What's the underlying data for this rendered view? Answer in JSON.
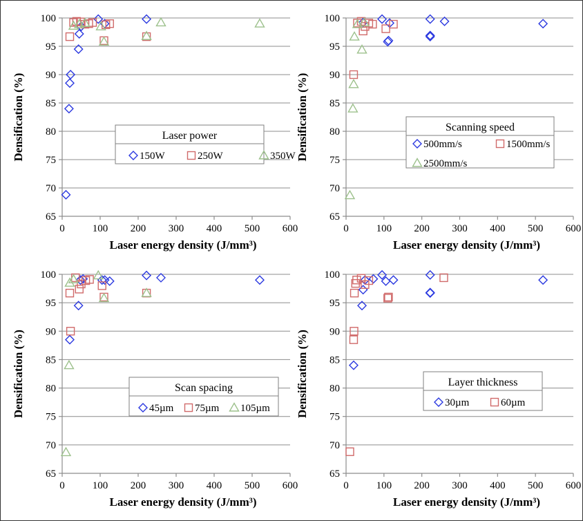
{
  "colors": {
    "blue": "#2b39e0",
    "red": "#d06a6a",
    "green": "#9cc08b"
  },
  "chart_data": [
    {
      "type": "scatter",
      "xlabel": "Laser energy density (J/mm³)",
      "ylabel": "Densification (%)",
      "xlim": [
        0,
        600
      ],
      "ylim": [
        65,
        100
      ],
      "xticks": [
        0,
        100,
        200,
        300,
        400,
        500,
        600
      ],
      "yticks": [
        65,
        70,
        75,
        80,
        85,
        90,
        95,
        100
      ],
      "grid": true,
      "legend_position": "center",
      "legend_title": "Laser power",
      "series": [
        {
          "name": "150W",
          "marker": "diamond",
          "color": "#2b39e0",
          "points": [
            [
              10,
              68.8
            ],
            [
              18,
              84
            ],
            [
              20,
              88.5
            ],
            [
              22,
              90
            ],
            [
              43,
              94.5
            ],
            [
              45,
              97.2
            ],
            [
              50,
              98.5
            ],
            [
              95,
              99.8
            ],
            [
              112,
              99
            ],
            [
              222,
              99.8
            ]
          ]
        },
        {
          "name": "250W",
          "marker": "square",
          "color": "#d06a6a",
          "points": [
            [
              20,
              96.7
            ],
            [
              30,
              99.2
            ],
            [
              38,
              99.4
            ],
            [
              48,
              99.3
            ],
            [
              60,
              98.9
            ],
            [
              70,
              99
            ],
            [
              80,
              99.2
            ],
            [
              110,
              96
            ],
            [
              115,
              98.8
            ],
            [
              125,
              99
            ],
            [
              222,
              96.7
            ]
          ]
        },
        {
          "name": "350W",
          "marker": "triangle",
          "color": "#9cc08b",
          "points": [
            [
              30,
              98.6
            ],
            [
              45,
              98.9
            ],
            [
              60,
              99.1
            ],
            [
              102,
              98.5
            ],
            [
              110,
              95.8
            ],
            [
              222,
              96.8
            ],
            [
              260,
              99.2
            ],
            [
              520,
              99
            ]
          ]
        }
      ]
    },
    {
      "type": "scatter",
      "xlabel": "Laser energy density (J/mm³)",
      "ylabel": "Densification (%)",
      "xlim": [
        0,
        600
      ],
      "ylim": [
        65,
        100
      ],
      "xticks": [
        0,
        100,
        200,
        300,
        400,
        500,
        600
      ],
      "yticks": [
        65,
        70,
        75,
        80,
        85,
        90,
        95,
        100
      ],
      "grid": true,
      "legend_position": "center-right",
      "legend_title": "Scanning speed",
      "series": [
        {
          "name": "500mm/s",
          "marker": "diamond",
          "color": "#2b39e0",
          "points": [
            [
              45,
              99.2
            ],
            [
              95,
              99.8
            ],
            [
              110,
              95.8
            ],
            [
              112,
              96
            ],
            [
              115,
              99.1
            ],
            [
              222,
              96.7
            ],
            [
              222,
              96.9
            ],
            [
              222,
              99.8
            ],
            [
              260,
              99.4
            ],
            [
              520,
              99
            ]
          ]
        },
        {
          "name": "1500mm/s",
          "marker": "square",
          "color": "#d06a6a",
          "points": [
            [
              20,
              90
            ],
            [
              30,
              99.1
            ],
            [
              40,
              99.4
            ],
            [
              45,
              97.7
            ],
            [
              50,
              98.5
            ],
            [
              60,
              99.1
            ],
            [
              70,
              98.9
            ],
            [
              105,
              98.1
            ],
            [
              125,
              98.9
            ]
          ]
        },
        {
          "name": "2500mm/s",
          "marker": "triangle",
          "color": "#9cc08b",
          "points": [
            [
              10,
              68.7
            ],
            [
              18,
              84
            ],
            [
              20,
              88.3
            ],
            [
              22,
              96.7
            ],
            [
              30,
              98.9
            ],
            [
              42,
              94.4
            ],
            [
              48,
              99.2
            ]
          ]
        }
      ]
    },
    {
      "type": "scatter",
      "xlabel": "Laser energy density (J/mm³)",
      "ylabel": "Densification (%)",
      "xlim": [
        0,
        600
      ],
      "ylim": [
        65,
        100
      ],
      "xticks": [
        0,
        100,
        200,
        300,
        400,
        500,
        600
      ],
      "yticks": [
        65,
        70,
        75,
        80,
        85,
        90,
        95,
        100
      ],
      "grid": true,
      "legend_position": "center-right",
      "legend_title": "Scan spacing",
      "series": [
        {
          "name": "45µm",
          "marker": "diamond",
          "color": "#2b39e0",
          "points": [
            [
              20,
              88.5
            ],
            [
              43,
              94.5
            ],
            [
              48,
              99
            ],
            [
              55,
              99.2
            ],
            [
              105,
              99
            ],
            [
              112,
              99
            ],
            [
              125,
              98.8
            ],
            [
              222,
              99.8
            ],
            [
              260,
              99.4
            ],
            [
              520,
              99
            ]
          ]
        },
        {
          "name": "75µm",
          "marker": "square",
          "color": "#d06a6a",
          "points": [
            [
              20,
              96.7
            ],
            [
              22,
              90
            ],
            [
              35,
              99.4
            ],
            [
              45,
              97.4
            ],
            [
              50,
              98.3
            ],
            [
              62,
              98.9
            ],
            [
              72,
              99.1
            ],
            [
              105,
              98
            ],
            [
              110,
              96
            ],
            [
              222,
              96.7
            ]
          ]
        },
        {
          "name": "105µm",
          "marker": "triangle",
          "color": "#9cc08b",
          "points": [
            [
              10,
              68.7
            ],
            [
              18,
              84
            ],
            [
              20,
              98.5
            ],
            [
              30,
              99.1
            ],
            [
              95,
              99.8
            ],
            [
              110,
              95.8
            ],
            [
              222,
              96.7
            ]
          ]
        }
      ]
    },
    {
      "type": "scatter",
      "xlabel": "Laser energy density (J/mm³)",
      "ylabel": "Densification (%)",
      "xlim": [
        0,
        600
      ],
      "ylim": [
        65,
        100
      ],
      "xticks": [
        0,
        100,
        200,
        300,
        400,
        500,
        600
      ],
      "yticks": [
        65,
        70,
        75,
        80,
        85,
        90,
        95,
        100
      ],
      "grid": true,
      "legend_position": "center-right",
      "legend_title": "Layer thickness",
      "series": [
        {
          "name": "30µm",
          "marker": "diamond",
          "color": "#2b39e0",
          "points": [
            [
              20,
              84
            ],
            [
              42,
              94.5
            ],
            [
              45,
              97.3
            ],
            [
              50,
              99
            ],
            [
              72,
              99.2
            ],
            [
              95,
              99.9
            ],
            [
              105,
              98.8
            ],
            [
              125,
              99
            ],
            [
              222,
              96.7
            ],
            [
              222,
              96.8
            ],
            [
              222,
              99.9
            ],
            [
              520,
              99
            ]
          ]
        },
        {
          "name": "60µm",
          "marker": "square",
          "color": "#d06a6a",
          "points": [
            [
              10,
              68.8
            ],
            [
              20,
              88.5
            ],
            [
              21,
              90
            ],
            [
              22,
              96.7
            ],
            [
              25,
              98.4
            ],
            [
              28,
              99
            ],
            [
              40,
              99.3
            ],
            [
              50,
              98.2
            ],
            [
              60,
              98.9
            ],
            [
              110,
              95.8
            ],
            [
              112,
              96
            ],
            [
              258,
              99.4
            ]
          ]
        }
      ]
    }
  ]
}
